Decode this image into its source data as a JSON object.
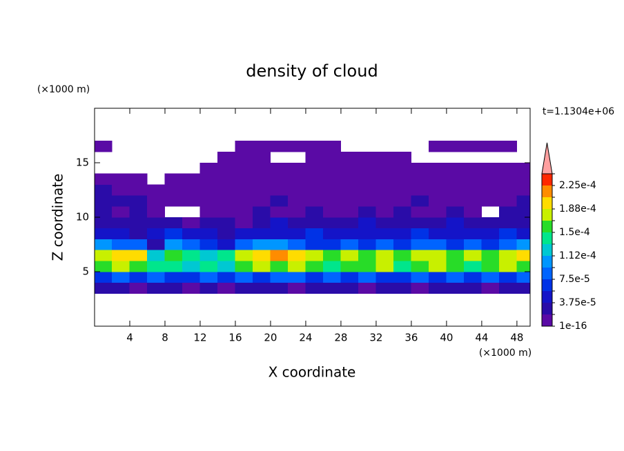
{
  "chart_data": {
    "type": "contour",
    "title": "density of cloud",
    "xlabel": "X coordinate",
    "ylabel": "Z coordinate",
    "xunit": "(×1000 m)",
    "yunit": "(×1000 m)",
    "annotation": "t=1.1304e+06",
    "xlim": [
      0,
      49.5
    ],
    "ylim": [
      0,
      20
    ],
    "xticks": [
      4,
      8,
      12,
      16,
      20,
      24,
      28,
      32,
      36,
      40,
      44,
      48
    ],
    "yticks": [
      5,
      10,
      15
    ],
    "x": [
      1,
      3,
      5,
      7,
      9,
      11,
      13,
      15,
      17,
      19,
      21,
      23,
      25,
      27,
      29,
      31,
      33,
      35,
      37,
      39,
      41,
      43,
      45,
      47,
      49
    ],
    "z": [
      3.5,
      4.5,
      5.5,
      6.5,
      7.5,
      8.5,
      9.5,
      10.5,
      11.5,
      12.5,
      13.5,
      14.5,
      15.5,
      16.5
    ],
    "values": [
      [
        2.8e-05,
        2.8e-05,
        1e-05,
        2.8e-05,
        2.8e-05,
        1e-05,
        2.8e-05,
        1e-05,
        2.8e-05,
        2.8e-05,
        2.8e-05,
        1e-05,
        2.8e-05,
        2.8e-05,
        2.8e-05,
        1e-05,
        2.8e-05,
        2.8e-05,
        1e-05,
        2.8e-05,
        2.8e-05,
        2.8e-05,
        1e-05,
        2.8e-05,
        2.8e-05
      ],
      [
        6.5e-05,
        8.4e-05,
        6.5e-05,
        8.4e-05,
        6.5e-05,
        6.5e-05,
        8.4e-05,
        6.5e-05,
        8.4e-05,
        6.5e-05,
        8.4e-05,
        8.4e-05,
        6.5e-05,
        8.4e-05,
        6.5e-05,
        8.4e-05,
        6.5e-05,
        6.5e-05,
        8.4e-05,
        6.5e-05,
        8.4e-05,
        6.5e-05,
        8.4e-05,
        6.5e-05,
        8.4e-05
      ],
      [
        0.00016,
        0.000178,
        0.00016,
        0.00014,
        0.00014,
        0.000122,
        0.00014,
        0.000122,
        0.00016,
        0.000178,
        0.00016,
        0.000178,
        0.00016,
        0.00014,
        0.00016,
        0.00016,
        0.000178,
        0.00014,
        0.00016,
        0.000178,
        0.00016,
        0.00014,
        0.00016,
        0.000178,
        0.00016
      ],
      [
        0.000178,
        0.000197,
        0.000197,
        0.000122,
        0.00016,
        0.00014,
        0.000122,
        0.00014,
        0.000178,
        0.000197,
        0.000215,
        0.000197,
        0.000178,
        0.00016,
        0.000178,
        0.00016,
        0.000178,
        0.00016,
        0.000178,
        0.000178,
        0.00016,
        0.000178,
        0.00016,
        0.000178,
        0.000197
      ],
      [
        0.000103,
        8.4e-05,
        8.4e-05,
        2.8e-05,
        0.000103,
        8.4e-05,
        6.5e-05,
        4.7e-05,
        8.4e-05,
        0.000103,
        0.000103,
        8.4e-05,
        6.5e-05,
        6.5e-05,
        8.4e-05,
        6.5e-05,
        8.4e-05,
        6.5e-05,
        8.4e-05,
        8.4e-05,
        6.5e-05,
        8.4e-05,
        6.5e-05,
        8.4e-05,
        0.000103
      ],
      [
        4.7e-05,
        4.7e-05,
        2.8e-05,
        4.7e-05,
        6.5e-05,
        4.7e-05,
        4.7e-05,
        2.8e-05,
        4.7e-05,
        4.7e-05,
        4.7e-05,
        4.7e-05,
        6.5e-05,
        4.7e-05,
        4.7e-05,
        4.7e-05,
        4.7e-05,
        4.7e-05,
        6.5e-05,
        4.7e-05,
        4.7e-05,
        4.7e-05,
        4.7e-05,
        6.5e-05,
        4.7e-05
      ],
      [
        2.8e-05,
        2.8e-05,
        2.8e-05,
        2.8e-05,
        2.8e-05,
        1e-05,
        2.8e-05,
        2.8e-05,
        1e-05,
        2.8e-05,
        4.7e-05,
        2.8e-05,
        2.8e-05,
        2.8e-05,
        2.8e-05,
        4.7e-05,
        2.8e-05,
        2.8e-05,
        2.8e-05,
        2.8e-05,
        4.7e-05,
        2.8e-05,
        2.8e-05,
        2.8e-05,
        2.8e-05
      ],
      [
        2.8e-05,
        1e-05,
        2.8e-05,
        1e-05,
        null,
        null,
        1e-05,
        1e-05,
        1e-05,
        2.8e-05,
        1e-05,
        1e-05,
        2.8e-05,
        1e-05,
        1e-05,
        2.8e-05,
        1e-05,
        2.8e-05,
        1e-05,
        1e-05,
        2.8e-05,
        1e-05,
        null,
        2.8e-05,
        2.8e-05
      ],
      [
        2.8e-05,
        2.8e-05,
        2.8e-05,
        1e-05,
        1e-05,
        1e-05,
        1e-05,
        1e-05,
        1e-05,
        1e-05,
        2.8e-05,
        1e-05,
        1e-05,
        1e-05,
        1e-05,
        1e-05,
        1e-05,
        1e-05,
        2.8e-05,
        1e-05,
        1e-05,
        1e-05,
        1e-05,
        1e-05,
        2.8e-05
      ],
      [
        2.8e-05,
        1e-05,
        1e-05,
        1e-05,
        1e-05,
        1e-05,
        1e-05,
        1e-05,
        1e-05,
        1e-05,
        1e-05,
        1e-05,
        1e-05,
        1e-05,
        1e-05,
        1e-05,
        1e-05,
        1e-05,
        1e-05,
        1e-05,
        1e-05,
        1e-05,
        1e-05,
        1e-05,
        1e-05
      ],
      [
        1e-05,
        1e-05,
        1e-05,
        null,
        1e-05,
        1e-05,
        1e-05,
        1e-05,
        1e-05,
        1e-05,
        1e-05,
        1e-05,
        1e-05,
        1e-05,
        1e-05,
        1e-05,
        1e-05,
        1e-05,
        1e-05,
        1e-05,
        1e-05,
        1e-05,
        1e-05,
        1e-05,
        1e-05
      ],
      [
        null,
        null,
        null,
        null,
        null,
        null,
        1e-05,
        1e-05,
        1e-05,
        1e-05,
        1e-05,
        1e-05,
        1e-05,
        1e-05,
        1e-05,
        1e-05,
        1e-05,
        1e-05,
        1e-05,
        1e-05,
        1e-05,
        1e-05,
        1e-05,
        1e-05,
        1e-05
      ],
      [
        null,
        null,
        null,
        null,
        null,
        null,
        null,
        1e-05,
        1e-05,
        1e-05,
        null,
        null,
        1e-05,
        1e-05,
        1e-05,
        1e-05,
        1e-05,
        1e-05,
        null,
        null,
        null,
        null,
        null,
        null,
        null
      ],
      [
        1e-05,
        null,
        null,
        null,
        null,
        null,
        null,
        null,
        1e-05,
        1e-05,
        1e-05,
        1e-05,
        1e-05,
        1e-05,
        null,
        null,
        null,
        null,
        null,
        1e-05,
        1e-05,
        1e-05,
        1e-05,
        1e-05,
        null
      ]
    ],
    "colorbar": {
      "levels": [
        1e-16,
        1.875e-05,
        3.75e-05,
        5.625e-05,
        7.5e-05,
        9.375e-05,
        0.0001125,
        0.00013125,
        0.00015,
        0.00016875,
        0.0001875,
        0.00020625,
        0.000225,
        0.00024375
      ],
      "colors": [
        "#5a0aa5",
        "#2a0ca8",
        "#1414c8",
        "#0032e6",
        "#0064ff",
        "#0096ff",
        "#00c8d2",
        "#00e68c",
        "#28dc28",
        "#c8f000",
        "#ffdc00",
        "#ff8c00",
        "#ff2800"
      ],
      "extend_color": "#ffa0a0",
      "ticks": [
        {
          "value": 1e-16,
          "label": "1e-16"
        },
        {
          "value": 3.75e-05,
          "label": "3.75e-5"
        },
        {
          "value": 7.5e-05,
          "label": "7.5e-5"
        },
        {
          "value": 0.0001125,
          "label": "1.12e-4"
        },
        {
          "value": 0.00015,
          "label": "1.5e-4"
        },
        {
          "value": 0.0001875,
          "label": "1.88e-4"
        },
        {
          "value": 0.000225,
          "label": "2.25e-4"
        }
      ]
    }
  }
}
